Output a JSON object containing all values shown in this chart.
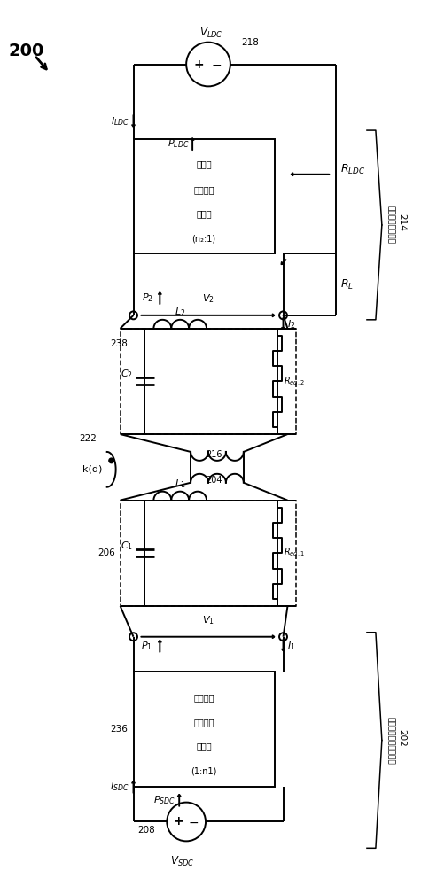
{
  "fig_width": 4.75,
  "fig_height": 10.0,
  "bg_color": "#ffffff",
  "lc": "#000000",
  "lw": 1.4,
  "labels": {
    "200": "200",
    "202": "202",
    "204": "204",
    "206": "206",
    "208": "208",
    "214": "214",
    "216": "216",
    "218": "218",
    "222": "222",
    "236": "236",
    "238": "238"
  },
  "t_base_1": "底座充电",
  "t_base_2": "系统电力",
  "t_base_3": "转换器",
  "t_base_4": "(1:n1)",
  "t_ev_1": "电动车",
  "t_ev_2": "车载电力",
  "t_ev_3": "转换器",
  "t_ev_4": "(n₂:1)",
  "t_base_sys": "底座无线电力充电系统",
  "t_ev_sys": "电动车辆充电系统"
}
